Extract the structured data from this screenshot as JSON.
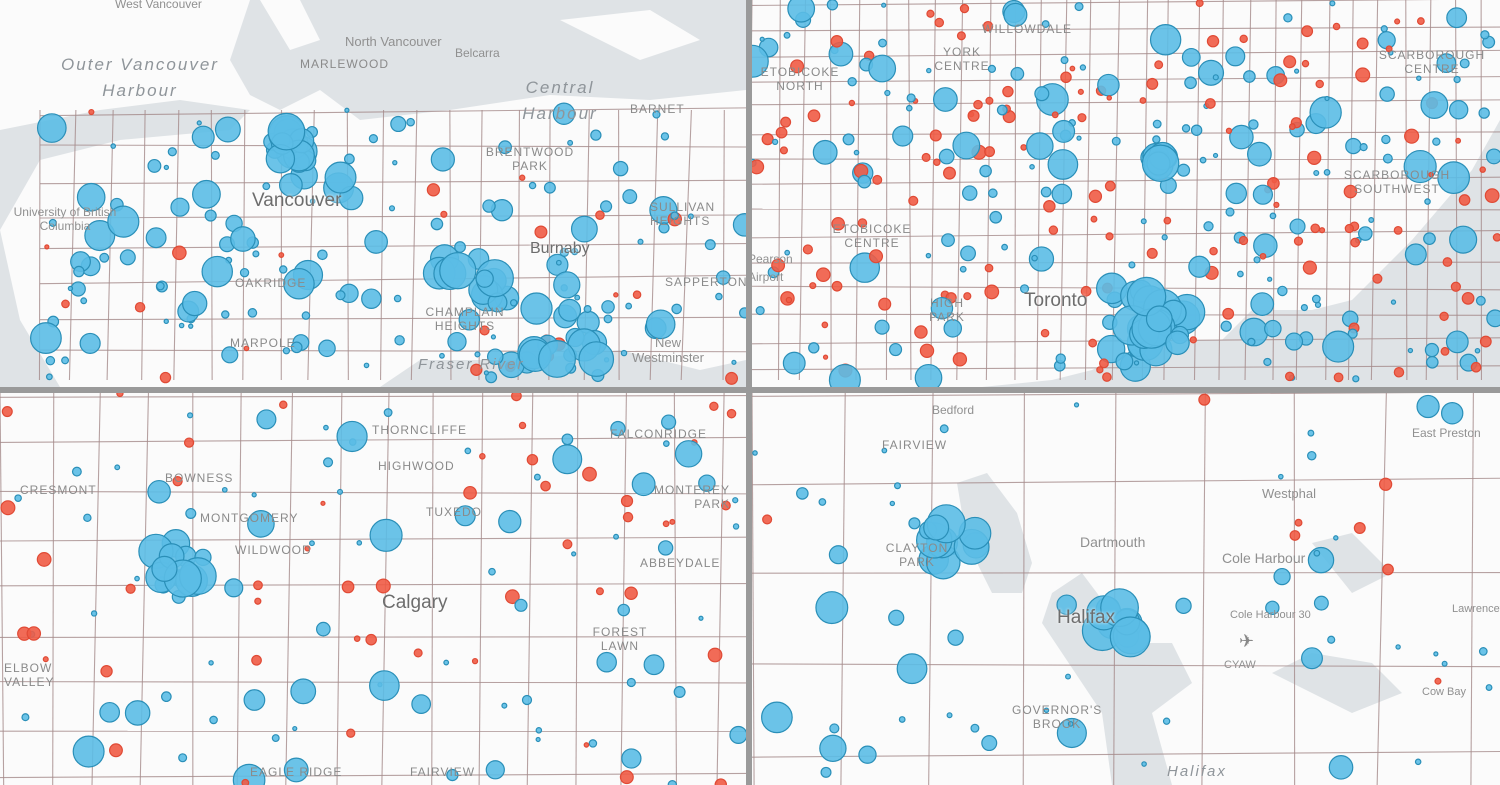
{
  "colors": {
    "increase": "#5bbde6",
    "increase_stroke": "#2a8fb8",
    "decrease": "#ef5b45",
    "land": "#fbfbfb",
    "water": "#dfe3e6",
    "roads": "#a58b8b"
  },
  "panels": [
    {
      "city": "Vancouver",
      "labels": {
        "water": [
          "Outer Vancouver Harbour",
          "Central Harbour",
          "Fraser River"
        ],
        "places": [
          "West Vancouver",
          "North Vancouver",
          "Belcarra",
          "University of British Columbia",
          "Burnaby",
          "New Westminster"
        ],
        "neighbourhoods": [
          "Marlewood",
          "Barnet",
          "Brentwood Park",
          "Sullivan Heights",
          "Oakridge",
          "Champlain Heights",
          "Marpole",
          "Sapperton"
        ]
      }
    },
    {
      "city": "Toronto",
      "labels": {
        "water": [],
        "places": [
          "Pearson Airport"
        ],
        "neighbourhoods": [
          "Willowdale",
          "York Centre",
          "Scarborough Centre",
          "Etobicoke North",
          "Etobicoke Centre",
          "High Park",
          "Scarborough Southwest"
        ]
      }
    },
    {
      "city": "Calgary",
      "labels": {
        "water": [],
        "places": [],
        "neighbourhoods": [
          "Thorncliffe",
          "Highwood",
          "Tuxedo",
          "Bowness",
          "Montgomery",
          "Wildwood",
          "Cresmont",
          "Elbow Valley",
          "Monterey Park",
          "Abbeydale",
          "Forest Lawn",
          "Fairview",
          "Eagle Ridge",
          "Falconridge"
        ]
      }
    },
    {
      "city": "Halifax",
      "labels": {
        "water": [
          "Halifax"
        ],
        "places": [
          "Bedford",
          "East Preston",
          "Westphal",
          "Dartmouth",
          "Cole Harbour",
          "Cole Harbour 30",
          "CYAW",
          "Cow Bay",
          "Lawrencetown"
        ],
        "neighbourhoods": [
          "Clayton Park",
          "Governor's Brook",
          "Fairview"
        ]
      }
    }
  ]
}
